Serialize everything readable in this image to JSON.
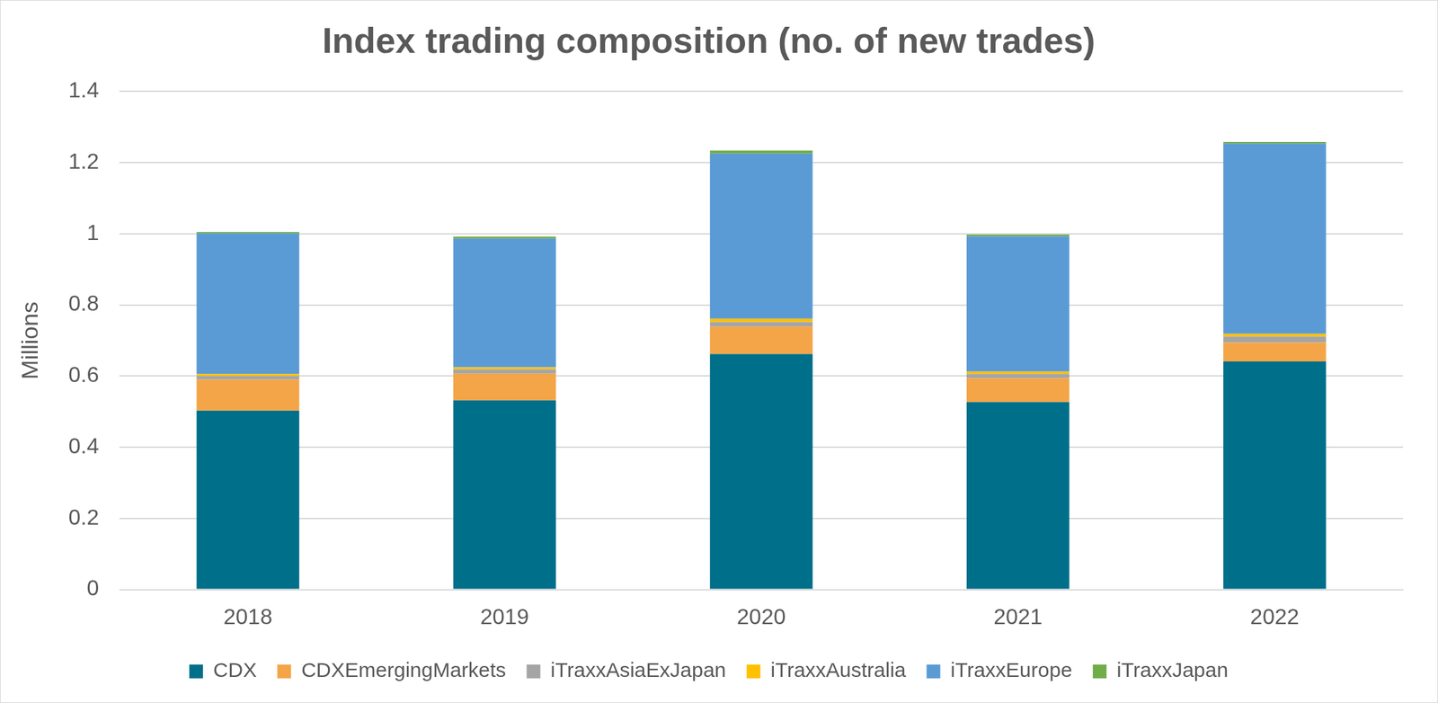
{
  "chart_data": {
    "type": "bar",
    "title": "Index trading composition (no. of new trades)",
    "y_label": "Millions",
    "categories": [
      "2018",
      "2019",
      "2020",
      "2021",
      "2022"
    ],
    "series": [
      {
        "name": "CDX",
        "color": "#006f8a",
        "values": [
          0.503,
          0.532,
          0.662,
          0.527,
          0.641
        ]
      },
      {
        "name": "CDXEmergingMarkets",
        "color": "#f3a547",
        "values": [
          0.087,
          0.075,
          0.077,
          0.067,
          0.053
        ]
      },
      {
        "name": "iTraxxAsiaExJapan",
        "color": "#a5a5a5",
        "values": [
          0.01,
          0.012,
          0.013,
          0.012,
          0.017
        ]
      },
      {
        "name": "iTraxxAustralia",
        "color": "#ffc000",
        "values": [
          0.006,
          0.006,
          0.009,
          0.007,
          0.008
        ]
      },
      {
        "name": "iTraxxEurope",
        "color": "#5b9bd5",
        "values": [
          0.395,
          0.362,
          0.465,
          0.38,
          0.535
        ]
      },
      {
        "name": "iTraxxJapan",
        "color": "#70ad47",
        "values": [
          0.004,
          0.005,
          0.008,
          0.005,
          0.004
        ]
      }
    ],
    "ylim": [
      0,
      1.4
    ],
    "yticks": [
      0,
      0.2,
      0.4,
      0.6,
      0.8,
      1,
      1.2,
      1.4
    ],
    "stacked": true,
    "grid": true,
    "legend": "bottom"
  }
}
